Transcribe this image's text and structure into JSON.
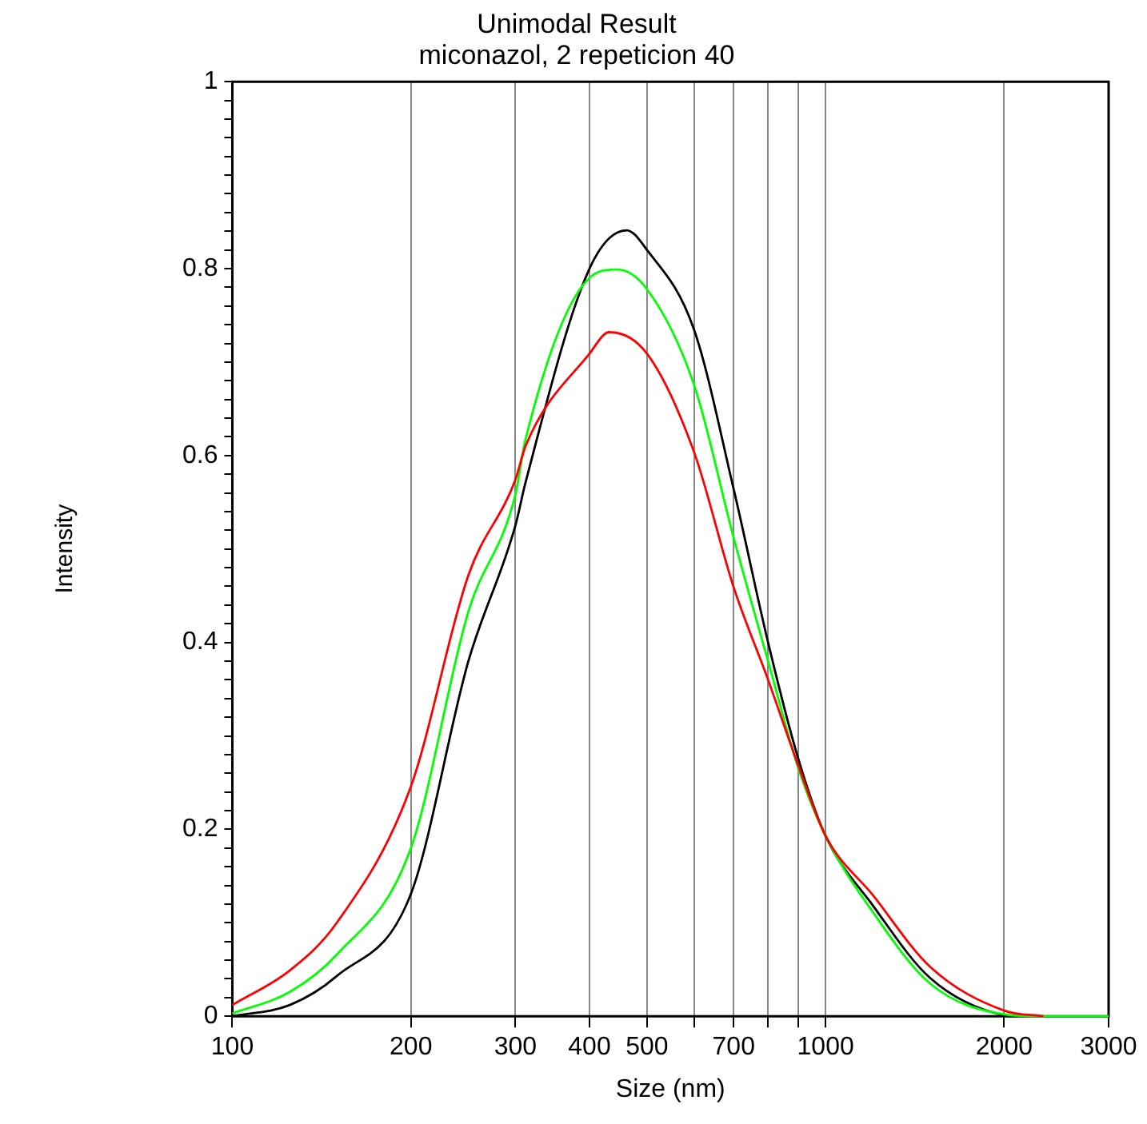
{
  "chart_data": {
    "type": "line",
    "title": "Unimodal Result",
    "subtitle": "miconazol, 2 repeticion 40",
    "xlabel": "Size (nm)",
    "ylabel": "Intensity",
    "log": "x",
    "grid": "x",
    "marker": "none",
    "xlim": [
      100,
      3000
    ],
    "xticks": [
      100,
      200,
      300,
      400,
      500,
      {
        "value": 600,
        "label": null
      },
      700,
      {
        "value": 800,
        "label": null
      },
      {
        "value": 900,
        "label": null
      },
      1000,
      2000,
      3000
    ],
    "ylim": [
      0,
      1
    ],
    "yticks": [
      0,
      {
        "value": 0.02,
        "label": null
      },
      {
        "value": 0.04,
        "label": null
      },
      {
        "value": 0.06,
        "label": null
      },
      {
        "value": 0.08,
        "label": null
      },
      {
        "value": 0.1,
        "label": null
      },
      {
        "value": 0.12,
        "label": null
      },
      {
        "value": 0.14,
        "label": null
      },
      {
        "value": 0.16,
        "label": null
      },
      {
        "value": 0.18,
        "label": null
      },
      0.2,
      {
        "value": 0.22,
        "label": null
      },
      {
        "value": 0.24,
        "label": null
      },
      {
        "value": 0.26,
        "label": null
      },
      {
        "value": 0.28,
        "label": null
      },
      {
        "value": 0.3,
        "label": null
      },
      {
        "value": 0.32,
        "label": null
      },
      {
        "value": 0.34,
        "label": null
      },
      {
        "value": 0.36,
        "label": null
      },
      {
        "value": 0.38,
        "label": null
      },
      0.4,
      {
        "value": 0.42,
        "label": null
      },
      {
        "value": 0.44,
        "label": null
      },
      {
        "value": 0.46,
        "label": null
      },
      {
        "value": 0.48,
        "label": null
      },
      {
        "value": 0.5,
        "label": null
      },
      {
        "value": 0.52,
        "label": null
      },
      {
        "value": 0.54,
        "label": null
      },
      {
        "value": 0.56,
        "label": null
      },
      {
        "value": 0.58,
        "label": null
      },
      0.6,
      {
        "value": 0.62,
        "label": null
      },
      {
        "value": 0.64,
        "label": null
      },
      {
        "value": 0.66,
        "label": null
      },
      {
        "value": 0.68,
        "label": null
      },
      {
        "value": 0.7,
        "label": null
      },
      {
        "value": 0.72,
        "label": null
      },
      {
        "value": 0.74,
        "label": null
      },
      {
        "value": 0.76,
        "label": null
      },
      {
        "value": 0.78,
        "label": null
      },
      0.8,
      {
        "value": 0.82,
        "label": null
      },
      {
        "value": 0.84,
        "label": null
      },
      {
        "value": 0.86,
        "label": null
      },
      {
        "value": 0.88,
        "label": null
      },
      {
        "value": 0.9,
        "label": null
      },
      {
        "value": 0.92,
        "label": null
      },
      {
        "value": 0.94,
        "label": null
      },
      {
        "value": 0.96,
        "label": null
      },
      {
        "value": 0.98,
        "label": null
      },
      1
    ],
    "series": [
      {
        "color": "#000000",
        "x": [
          100,
          125,
          150,
          200,
          250,
          300,
          312,
          400,
          462,
          500,
          600,
          700,
          800,
          900,
          1000,
          1200,
          1500,
          2000,
          2100
        ],
        "values": [
          0,
          0.012,
          0.043,
          0.131,
          0.38,
          0.525,
          0.571,
          0.8,
          0.841,
          0.82,
          0.735,
          0.564,
          0.4,
          0.275,
          0.193,
          0.119,
          0.041,
          0.001,
          0
        ]
      },
      {
        "color": "#00ff00",
        "x": [
          100,
          125,
          150,
          200,
          250,
          300,
          312,
          400,
          445,
          500,
          600,
          700,
          800,
          900,
          1000,
          1200,
          1500,
          2000,
          2300,
          3000
        ],
        "values": [
          0.003,
          0.026,
          0.066,
          0.18,
          0.433,
          0.558,
          0.617,
          0.79,
          0.799,
          0.778,
          0.676,
          0.512,
          0.38,
          0.265,
          0.193,
          0.112,
          0.035,
          0.002,
          0,
          0
        ]
      },
      {
        "color": "#ff0000",
        "x": [
          100,
          125,
          150,
          200,
          250,
          300,
          312,
          400,
          432,
          500,
          600,
          700,
          800,
          900,
          1000,
          1200,
          1500,
          2000,
          2330
        ],
        "values": [
          0.012,
          0.049,
          0.1,
          0.246,
          0.472,
          0.574,
          0.61,
          0.709,
          0.732,
          0.709,
          0.604,
          0.459,
          0.36,
          0.268,
          0.193,
          0.13,
          0.053,
          0.006,
          0
        ]
      }
    ]
  }
}
